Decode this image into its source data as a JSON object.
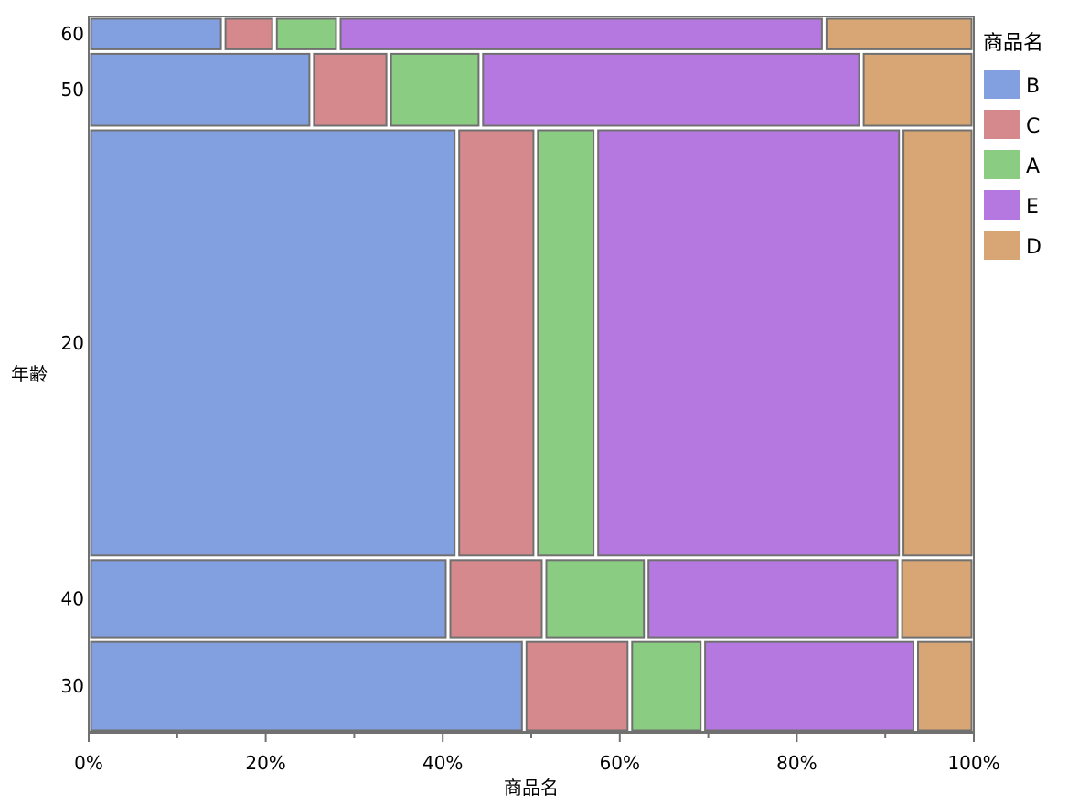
{
  "chart_data": {
    "type": "mosaic",
    "xlabel": "商品名",
    "ylabel": "年齢",
    "legend": {
      "title": "商品名",
      "placement": "right",
      "entries": [
        "B",
        "C",
        "A",
        "E",
        "D"
      ]
    },
    "colors": {
      "B": "#829fe0",
      "C": "#d6898c",
      "A": "#8acc82",
      "E": "#b478e0",
      "D": "#d7a674"
    },
    "x_ticks": [
      "0%",
      "20%",
      "40%",
      "60%",
      "80%",
      "100%"
    ],
    "x_range": [
      0,
      100
    ],
    "categories": [
      "B",
      "C",
      "A",
      "E",
      "D"
    ],
    "rows": [
      {
        "label": "60",
        "share": 4.0,
        "values": {
          "B": 15.2,
          "C": 5.8,
          "A": 7.2,
          "E": 54.9,
          "D": 16.9
        }
      },
      {
        "label": "50",
        "share": 8.7,
        "values": {
          "B": 25.2,
          "C": 8.7,
          "A": 10.4,
          "E": 43.0,
          "D": 12.7
        }
      },
      {
        "label": "20",
        "share": 48.9,
        "values": {
          "B": 41.6,
          "C": 8.9,
          "A": 6.8,
          "E": 34.5,
          "D": 8.2
        }
      },
      {
        "label": "40",
        "share": 9.3,
        "values": {
          "B": 40.8,
          "C": 10.9,
          "A": 11.6,
          "E": 28.8,
          "D": 8.4
        }
      },
      {
        "label": "30",
        "share": 10.6,
        "values": {
          "B": 49.5,
          "C": 12.0,
          "A": 8.3,
          "E": 24.2,
          "D": 6.6
        }
      }
    ]
  }
}
